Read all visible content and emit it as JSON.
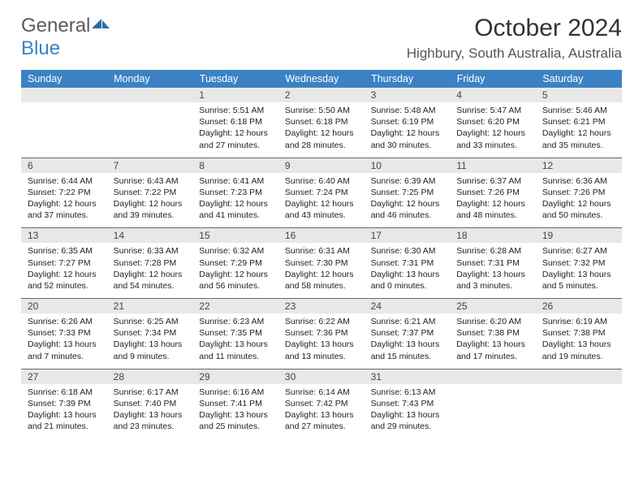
{
  "logo": {
    "general": "General",
    "blue": "Blue"
  },
  "title": "October 2024",
  "location": "Highbury, South Australia, Australia",
  "colors": {
    "header_bg": "#3b82c4",
    "header_text": "#ffffff",
    "daynum_bg": "#e8e8e8",
    "border": "#5a6c7c",
    "logo_gray": "#5b5b5b",
    "logo_blue": "#3b82c4"
  },
  "weekdays": [
    "Sunday",
    "Monday",
    "Tuesday",
    "Wednesday",
    "Thursday",
    "Friday",
    "Saturday"
  ],
  "first_weekday_index": 2,
  "days": [
    {
      "n": 1,
      "sunrise": "5:51 AM",
      "sunset": "6:18 PM",
      "daylight": "12 hours and 27 minutes."
    },
    {
      "n": 2,
      "sunrise": "5:50 AM",
      "sunset": "6:18 PM",
      "daylight": "12 hours and 28 minutes."
    },
    {
      "n": 3,
      "sunrise": "5:48 AM",
      "sunset": "6:19 PM",
      "daylight": "12 hours and 30 minutes."
    },
    {
      "n": 4,
      "sunrise": "5:47 AM",
      "sunset": "6:20 PM",
      "daylight": "12 hours and 33 minutes."
    },
    {
      "n": 5,
      "sunrise": "5:46 AM",
      "sunset": "6:21 PM",
      "daylight": "12 hours and 35 minutes."
    },
    {
      "n": 6,
      "sunrise": "6:44 AM",
      "sunset": "7:22 PM",
      "daylight": "12 hours and 37 minutes."
    },
    {
      "n": 7,
      "sunrise": "6:43 AM",
      "sunset": "7:22 PM",
      "daylight": "12 hours and 39 minutes."
    },
    {
      "n": 8,
      "sunrise": "6:41 AM",
      "sunset": "7:23 PM",
      "daylight": "12 hours and 41 minutes."
    },
    {
      "n": 9,
      "sunrise": "6:40 AM",
      "sunset": "7:24 PM",
      "daylight": "12 hours and 43 minutes."
    },
    {
      "n": 10,
      "sunrise": "6:39 AM",
      "sunset": "7:25 PM",
      "daylight": "12 hours and 46 minutes."
    },
    {
      "n": 11,
      "sunrise": "6:37 AM",
      "sunset": "7:26 PM",
      "daylight": "12 hours and 48 minutes."
    },
    {
      "n": 12,
      "sunrise": "6:36 AM",
      "sunset": "7:26 PM",
      "daylight": "12 hours and 50 minutes."
    },
    {
      "n": 13,
      "sunrise": "6:35 AM",
      "sunset": "7:27 PM",
      "daylight": "12 hours and 52 minutes."
    },
    {
      "n": 14,
      "sunrise": "6:33 AM",
      "sunset": "7:28 PM",
      "daylight": "12 hours and 54 minutes."
    },
    {
      "n": 15,
      "sunrise": "6:32 AM",
      "sunset": "7:29 PM",
      "daylight": "12 hours and 56 minutes."
    },
    {
      "n": 16,
      "sunrise": "6:31 AM",
      "sunset": "7:30 PM",
      "daylight": "12 hours and 58 minutes."
    },
    {
      "n": 17,
      "sunrise": "6:30 AM",
      "sunset": "7:31 PM",
      "daylight": "13 hours and 0 minutes."
    },
    {
      "n": 18,
      "sunrise": "6:28 AM",
      "sunset": "7:31 PM",
      "daylight": "13 hours and 3 minutes."
    },
    {
      "n": 19,
      "sunrise": "6:27 AM",
      "sunset": "7:32 PM",
      "daylight": "13 hours and 5 minutes."
    },
    {
      "n": 20,
      "sunrise": "6:26 AM",
      "sunset": "7:33 PM",
      "daylight": "13 hours and 7 minutes."
    },
    {
      "n": 21,
      "sunrise": "6:25 AM",
      "sunset": "7:34 PM",
      "daylight": "13 hours and 9 minutes."
    },
    {
      "n": 22,
      "sunrise": "6:23 AM",
      "sunset": "7:35 PM",
      "daylight": "13 hours and 11 minutes."
    },
    {
      "n": 23,
      "sunrise": "6:22 AM",
      "sunset": "7:36 PM",
      "daylight": "13 hours and 13 minutes."
    },
    {
      "n": 24,
      "sunrise": "6:21 AM",
      "sunset": "7:37 PM",
      "daylight": "13 hours and 15 minutes."
    },
    {
      "n": 25,
      "sunrise": "6:20 AM",
      "sunset": "7:38 PM",
      "daylight": "13 hours and 17 minutes."
    },
    {
      "n": 26,
      "sunrise": "6:19 AM",
      "sunset": "7:38 PM",
      "daylight": "13 hours and 19 minutes."
    },
    {
      "n": 27,
      "sunrise": "6:18 AM",
      "sunset": "7:39 PM",
      "daylight": "13 hours and 21 minutes."
    },
    {
      "n": 28,
      "sunrise": "6:17 AM",
      "sunset": "7:40 PM",
      "daylight": "13 hours and 23 minutes."
    },
    {
      "n": 29,
      "sunrise": "6:16 AM",
      "sunset": "7:41 PM",
      "daylight": "13 hours and 25 minutes."
    },
    {
      "n": 30,
      "sunrise": "6:14 AM",
      "sunset": "7:42 PM",
      "daylight": "13 hours and 27 minutes."
    },
    {
      "n": 31,
      "sunrise": "6:13 AM",
      "sunset": "7:43 PM",
      "daylight": "13 hours and 29 minutes."
    }
  ],
  "labels": {
    "sunrise": "Sunrise:",
    "sunset": "Sunset:",
    "daylight": "Daylight:"
  }
}
